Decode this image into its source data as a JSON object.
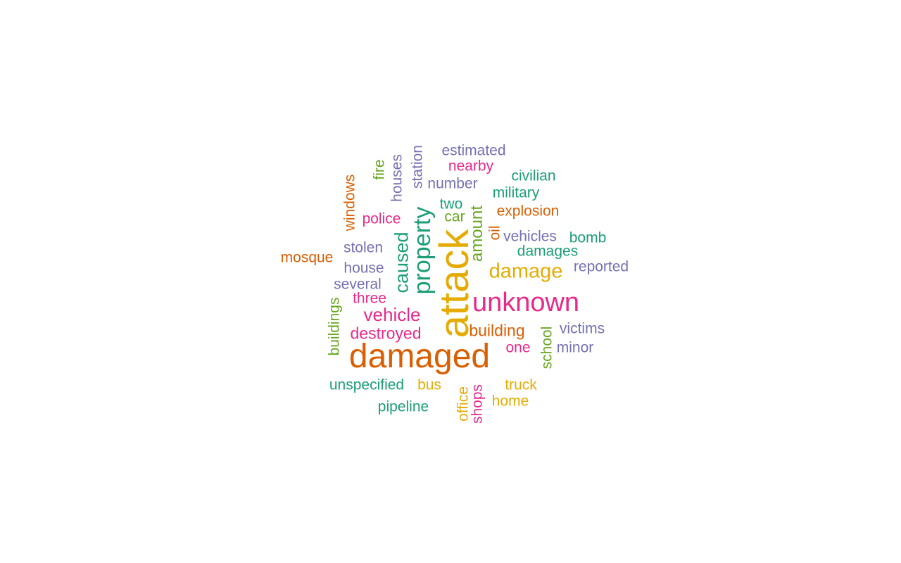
{
  "palette": {
    "teal": "#1b9e77",
    "orange": "#d95f02",
    "purple": "#7570b3",
    "magenta": "#e7298a",
    "green": "#66a61e",
    "gold": "#e6ab02"
  },
  "words": [
    {
      "text": "attack",
      "color": "gold",
      "vertical": true
    },
    {
      "text": "damaged",
      "color": "orange",
      "vertical": false
    },
    {
      "text": "unknown",
      "color": "magenta",
      "vertical": false
    },
    {
      "text": "property",
      "color": "teal",
      "vertical": true
    },
    {
      "text": "damage",
      "color": "gold",
      "vertical": false
    },
    {
      "text": "caused",
      "color": "teal",
      "vertical": true
    },
    {
      "text": "vehicle",
      "color": "magenta",
      "vertical": false
    },
    {
      "text": "destroyed",
      "color": "magenta",
      "vertical": false
    },
    {
      "text": "building",
      "color": "orange",
      "vertical": false
    },
    {
      "text": "amount",
      "color": "green",
      "vertical": true
    },
    {
      "text": "estimated",
      "color": "purple",
      "vertical": false
    },
    {
      "text": "nearby",
      "color": "magenta",
      "vertical": false
    },
    {
      "text": "civilian",
      "color": "teal",
      "vertical": false
    },
    {
      "text": "number",
      "color": "purple",
      "vertical": false
    },
    {
      "text": "military",
      "color": "teal",
      "vertical": false
    },
    {
      "text": "two",
      "color": "teal",
      "vertical": false
    },
    {
      "text": "explosion",
      "color": "orange",
      "vertical": false
    },
    {
      "text": "car",
      "color": "green",
      "vertical": false
    },
    {
      "text": "police",
      "color": "magenta",
      "vertical": false
    },
    {
      "text": "vehicles",
      "color": "purple",
      "vertical": false
    },
    {
      "text": "bomb",
      "color": "teal",
      "vertical": false
    },
    {
      "text": "damages",
      "color": "teal",
      "vertical": false
    },
    {
      "text": "stolen",
      "color": "purple",
      "vertical": false
    },
    {
      "text": "mosque",
      "color": "orange",
      "vertical": false
    },
    {
      "text": "house",
      "color": "purple",
      "vertical": false
    },
    {
      "text": "reported",
      "color": "purple",
      "vertical": false
    },
    {
      "text": "several",
      "color": "purple",
      "vertical": false
    },
    {
      "text": "three",
      "color": "magenta",
      "vertical": false
    },
    {
      "text": "victims",
      "color": "purple",
      "vertical": false
    },
    {
      "text": "one",
      "color": "magenta",
      "vertical": false
    },
    {
      "text": "minor",
      "color": "purple",
      "vertical": false
    },
    {
      "text": "unspecified",
      "color": "teal",
      "vertical": false
    },
    {
      "text": "bus",
      "color": "gold",
      "vertical": false
    },
    {
      "text": "truck",
      "color": "gold",
      "vertical": false
    },
    {
      "text": "home",
      "color": "gold",
      "vertical": false
    },
    {
      "text": "pipeline",
      "color": "teal",
      "vertical": false
    },
    {
      "text": "windows",
      "color": "orange",
      "vertical": true
    },
    {
      "text": "fire",
      "color": "green",
      "vertical": true
    },
    {
      "text": "houses",
      "color": "purple",
      "vertical": true
    },
    {
      "text": "station",
      "color": "purple",
      "vertical": true
    },
    {
      "text": "oil",
      "color": "orange",
      "vertical": true
    },
    {
      "text": "buildings",
      "color": "green",
      "vertical": true
    },
    {
      "text": "school",
      "color": "green",
      "vertical": true
    },
    {
      "text": "office",
      "color": "gold",
      "vertical": true
    },
    {
      "text": "shops",
      "color": "magenta",
      "vertical": true
    }
  ]
}
